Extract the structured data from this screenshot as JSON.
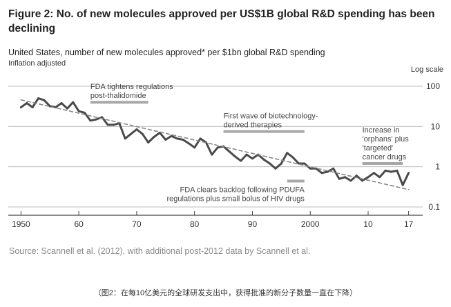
{
  "figure": {
    "title": "Figure 2: No. of new molecules approved per US$1B global R&D spending has been declining",
    "source": "Source: Scannell et al. (2012), with additional post-2012 data by Scannell et al.",
    "caption": "（图2：在每10亿美元的全球研发支出中，获得批准的新分子数量一直在下降）"
  },
  "chart_data": {
    "type": "line",
    "title": "United States, number of new molecules approved* per $1bn global R&D spending",
    "subtitle": "Inflation adjusted",
    "ylabel": "Log scale",
    "xlabel": "",
    "y_scale": "log",
    "xlim": [
      1949,
      2018
    ],
    "ylim": [
      0.1,
      100
    ],
    "x_ticks": [
      {
        "value": 1950,
        "label": "1950"
      },
      {
        "value": 1960,
        "label": "60"
      },
      {
        "value": 1970,
        "label": "70"
      },
      {
        "value": 1980,
        "label": "80"
      },
      {
        "value": 1990,
        "label": "90"
      },
      {
        "value": 2000,
        "label": "2000"
      },
      {
        "value": 2010,
        "label": "10"
      },
      {
        "value": 2017,
        "label": "17"
      }
    ],
    "y_ticks": [
      {
        "value": 100,
        "label": "100"
      },
      {
        "value": 10,
        "label": "10"
      },
      {
        "value": 1,
        "label": "1"
      },
      {
        "value": 0.1,
        "label": "0.1"
      }
    ],
    "series": [
      {
        "name": "New molecules approved per $1bn R&D",
        "style": "solid",
        "color": "#4a4a4a",
        "x": [
          1950,
          1951,
          1952,
          1953,
          1954,
          1955,
          1956,
          1957,
          1958,
          1959,
          1960,
          1961,
          1962,
          1963,
          1964,
          1965,
          1966,
          1967,
          1968,
          1969,
          1970,
          1971,
          1972,
          1973,
          1974,
          1975,
          1976,
          1977,
          1978,
          1979,
          1980,
          1981,
          1982,
          1983,
          1984,
          1985,
          1986,
          1987,
          1988,
          1989,
          1990,
          1991,
          1992,
          1993,
          1994,
          1995,
          1996,
          1997,
          1998,
          1999,
          2000,
          2001,
          2002,
          2003,
          2004,
          2005,
          2006,
          2007,
          2008,
          2009,
          2010,
          2011,
          2012,
          2013,
          2014,
          2015,
          2016,
          2017
        ],
        "y": [
          30,
          38,
          30,
          50,
          45,
          32,
          30,
          38,
          28,
          40,
          24,
          22,
          14,
          15,
          17,
          11,
          11,
          12,
          5,
          6.5,
          8.5,
          6.5,
          4,
          5.5,
          7,
          4.7,
          5.8,
          5,
          4.7,
          3.8,
          3,
          5,
          4,
          2,
          3,
          3.2,
          2.4,
          1.8,
          1.4,
          2,
          1.6,
          2,
          1.5,
          1.2,
          0.9,
          1.2,
          2.2,
          1.7,
          1.2,
          1.2,
          0.9,
          0.9,
          0.7,
          0.75,
          0.9,
          0.5,
          0.55,
          0.45,
          0.6,
          0.45,
          0.55,
          0.7,
          0.55,
          0.8,
          0.75,
          0.8,
          0.35,
          0.7
        ]
      },
      {
        "name": "Trend",
        "style": "dashed",
        "color": "#888888",
        "x": [
          1950,
          2017
        ],
        "y": [
          46,
          0.27
        ]
      }
    ],
    "annotations": [
      {
        "lines": [
          "FDA tightens regulations",
          "post-thalidomide"
        ],
        "x_range": [
          1962,
          1972
        ],
        "y": 40,
        "anchor": "start"
      },
      {
        "lines": [
          "First wave of biotechnology-",
          "derived therapies"
        ],
        "x_range": [
          1985,
          1999
        ],
        "y": 7.5,
        "anchor": "start"
      },
      {
        "lines": [
          "Increase in",
          "'orphans' plus",
          "'targeted'",
          "cancer drugs"
        ],
        "x_range": [
          2009,
          2016
        ],
        "y": 1.2,
        "anchor": "start"
      },
      {
        "lines": [
          "FDA clears backlog following PDUFA",
          "regulations plus small bolus of HIV drugs"
        ],
        "x_range": [
          1996,
          1999
        ],
        "y": 0.44,
        "anchor": "end"
      }
    ]
  }
}
